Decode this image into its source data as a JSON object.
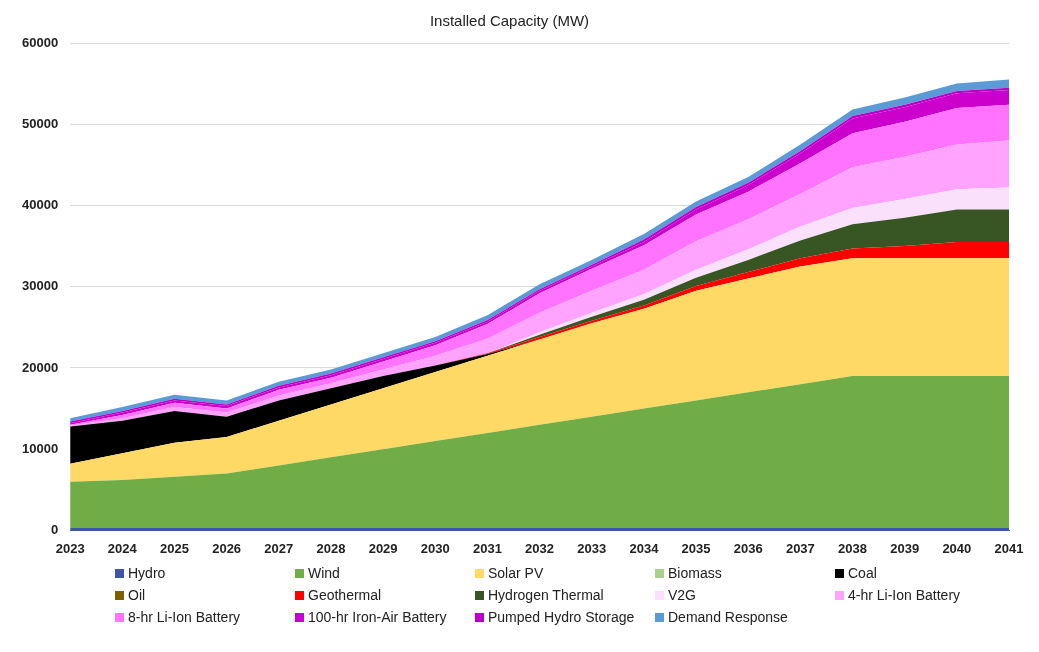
{
  "chart_data": {
    "type": "area",
    "title": "Installed Capacity (MW)",
    "stacked": true,
    "grid": "y",
    "legend": "bottom",
    "marker": "none",
    "categories": [
      "2023",
      "2024",
      "2025",
      "2026",
      "2027",
      "2028",
      "2029",
      "2030",
      "2031",
      "2032",
      "2033",
      "2034",
      "2035",
      "2036",
      "2037",
      "2038",
      "2039",
      "2040",
      "2041"
    ],
    "ylim": [
      0,
      60000
    ],
    "yticks": [
      0,
      10000,
      20000,
      30000,
      40000,
      50000,
      60000
    ],
    "series": [
      {
        "name": "Hydro",
        "color": "#3f55a5",
        "values": [
          300,
          300,
          300,
          300,
          300,
          300,
          300,
          300,
          300,
          300,
          300,
          300,
          300,
          300,
          300,
          300,
          300,
          300,
          300
        ]
      },
      {
        "name": "Wind",
        "color": "#70ad47",
        "values": [
          5700,
          5900,
          6300,
          6700,
          7700,
          8700,
          9700,
          10700,
          11700,
          12700,
          13700,
          14700,
          15700,
          16700,
          17700,
          18700,
          18700,
          18700,
          18700
        ]
      },
      {
        "name": "Solar PV",
        "color": "#ffd966",
        "values": [
          2200,
          3300,
          4200,
          4500,
          5500,
          6500,
          7500,
          8500,
          9500,
          10500,
          11500,
          12300,
          13500,
          14000,
          14500,
          14500,
          14500,
          14500,
          14500
        ]
      },
      {
        "name": "Biomass",
        "color": "#a9d18e",
        "values": [
          null,
          null,
          null,
          null,
          null,
          null,
          null,
          null,
          null,
          null,
          null,
          null,
          null,
          null,
          null,
          null,
          null,
          null,
          null
        ]
      },
      {
        "name": "Coal",
        "color": "#000000",
        "values": [
          4600,
          4000,
          3900,
          2500,
          2500,
          2000,
          1500,
          800,
          200,
          0,
          0,
          0,
          0,
          0,
          0,
          0,
          0,
          0,
          0
        ]
      },
      {
        "name": "Oil",
        "color": "#7f6000",
        "values": [
          null,
          null,
          null,
          null,
          null,
          null,
          null,
          null,
          null,
          null,
          null,
          null,
          null,
          null,
          null,
          null,
          null,
          null,
          null
        ]
      },
      {
        "name": "Geothermal",
        "color": "#ff0000",
        "values": [
          0,
          0,
          0,
          0,
          0,
          0,
          0,
          0,
          100,
          300,
          300,
          400,
          600,
          800,
          1000,
          1200,
          1500,
          2000,
          2000
        ]
      },
      {
        "name": "Hydrogen Thermal",
        "color": "#375623",
        "values": [
          0,
          0,
          0,
          0,
          0,
          0,
          0,
          0,
          0,
          300,
          500,
          700,
          1000,
          1500,
          2200,
          3000,
          3500,
          4000,
          4000
        ]
      },
      {
        "name": "V2G",
        "color": "#fbe0fb",
        "values": [
          0,
          0,
          0,
          0,
          0,
          0,
          0,
          0,
          0,
          300,
          500,
          700,
          1000,
          1300,
          1700,
          2000,
          2300,
          2500,
          2700
        ]
      },
      {
        "name": "4-hr Li-Ion Battery",
        "color": "#ffa3ff",
        "values": [
          100,
          300,
          500,
          500,
          600,
          600,
          800,
          1200,
          1800,
          2400,
          2700,
          3000,
          3500,
          3700,
          4000,
          5000,
          5200,
          5500,
          5800
        ]
      },
      {
        "name": "8-hr Li-Ion Battery",
        "color": "#ff73ff",
        "values": [
          100,
          400,
          500,
          500,
          700,
          700,
          1000,
          1300,
          1800,
          2400,
          2700,
          3000,
          3300,
          3400,
          3800,
          4200,
          4300,
          4500,
          4400
        ]
      },
      {
        "name": "100-hr Iron-Air Battery",
        "color": "#cc00cc",
        "values": [
          200,
          300,
          300,
          300,
          300,
          300,
          300,
          300,
          300,
          300,
          300,
          400,
          600,
          800,
          1200,
          1800,
          1800,
          1800,
          1800
        ]
      },
      {
        "name": "Pumped Hydro Storage",
        "color": "#b800c8",
        "values": [
          200,
          200,
          200,
          200,
          200,
          200,
          200,
          200,
          200,
          200,
          200,
          300,
          300,
          300,
          300,
          300,
          300,
          300,
          300
        ]
      },
      {
        "name": "Demand Response",
        "color": "#5b9bd5",
        "values": [
          400,
          500,
          500,
          500,
          500,
          500,
          500,
          500,
          600,
          600,
          600,
          700,
          700,
          700,
          800,
          800,
          900,
          900,
          1000
        ]
      }
    ]
  }
}
